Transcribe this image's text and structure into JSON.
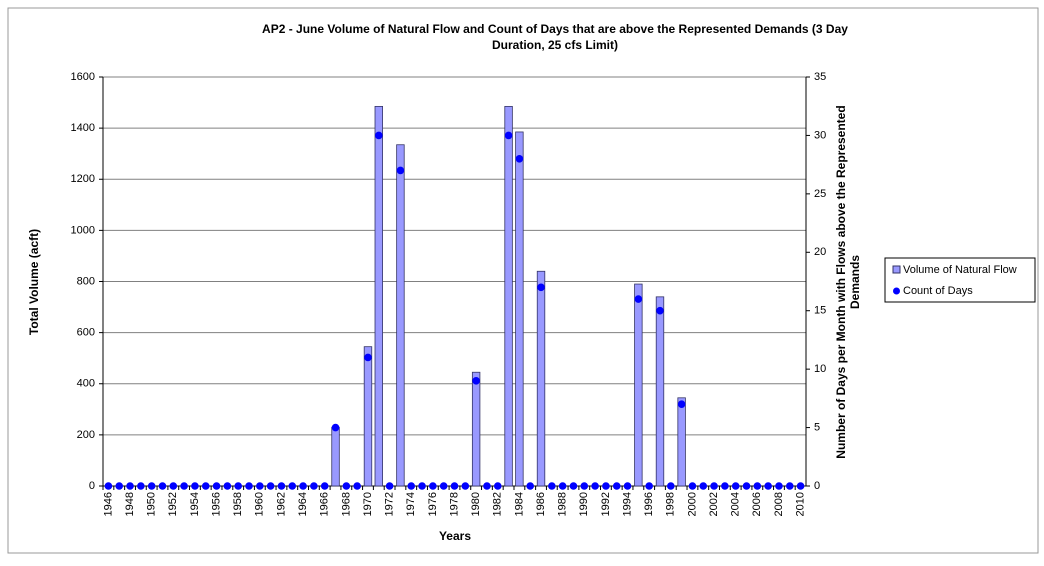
{
  "chart_data": {
    "type": "bar",
    "title": [
      "AP2 - June Volume of Natural Flow and Count of Days that are above the Represented Demands (3 Day",
      "Duration, 25 cfs Limit)"
    ],
    "x_label": "Years",
    "y_label": "Total Volume (acft)",
    "y2_label": [
      "Number of Days per Month with Flows above the Represented",
      "Demands"
    ],
    "categories": [
      "1946",
      null,
      "1948",
      null,
      "1950",
      null,
      "1952",
      null,
      "1954",
      null,
      "1956",
      null,
      "1958",
      null,
      "1960",
      null,
      "1962",
      null,
      "1964",
      null,
      "1966",
      null,
      "1968",
      null,
      "1970",
      null,
      "1972",
      null,
      "1974",
      null,
      "1976",
      null,
      "1978",
      null,
      "1980",
      null,
      "1982",
      null,
      "1984",
      null,
      "1986",
      null,
      "1988",
      null,
      "1990",
      null,
      "1992",
      null,
      "1994",
      null,
      "1996",
      null,
      "1998",
      null,
      "2000",
      null,
      "2002",
      null,
      "2004",
      null,
      "2006",
      null,
      "2008",
      null,
      "2010"
    ],
    "series": [
      {
        "name": "Volume of Natural Flow",
        "type": "bar",
        "color": "#9999ff",
        "values": [
          0,
          0,
          0,
          0,
          0,
          0,
          0,
          0,
          0,
          0,
          0,
          0,
          0,
          0,
          0,
          0,
          0,
          0,
          0,
          0,
          0,
          230,
          0,
          0,
          545,
          1485,
          0,
          1335,
          0,
          0,
          0,
          0,
          0,
          0,
          445,
          0,
          0,
          1485,
          1385,
          0,
          840,
          0,
          0,
          0,
          0,
          0,
          0,
          0,
          0,
          790,
          0,
          740,
          0,
          345,
          0,
          0,
          0,
          0,
          0,
          0,
          0,
          0,
          0,
          0,
          0
        ]
      },
      {
        "name": "Count of Days",
        "type": "scatter",
        "axis": "y2",
        "color": "#0000ff",
        "values": [
          0,
          0,
          0,
          0,
          0,
          0,
          0,
          0,
          0,
          0,
          0,
          0,
          0,
          0,
          0,
          0,
          0,
          0,
          0,
          0,
          0,
          5,
          0,
          0,
          11,
          30,
          0,
          27,
          0,
          0,
          0,
          0,
          0,
          0,
          9,
          0,
          0,
          30,
          28,
          0,
          17,
          0,
          0,
          0,
          0,
          0,
          0,
          0,
          0,
          16,
          0,
          15,
          0,
          7,
          0,
          0,
          0,
          0,
          0,
          0,
          0,
          0,
          0,
          0,
          0
        ]
      }
    ],
    "ylim": [
      0,
      1600
    ],
    "yticks": [
      0,
      200,
      400,
      600,
      800,
      1000,
      1200,
      1400,
      1600
    ],
    "y2lim": [
      0,
      35
    ],
    "y2ticks": [
      0,
      5,
      10,
      15,
      20,
      25,
      30,
      35
    ],
    "grid": true,
    "legend": "right"
  }
}
